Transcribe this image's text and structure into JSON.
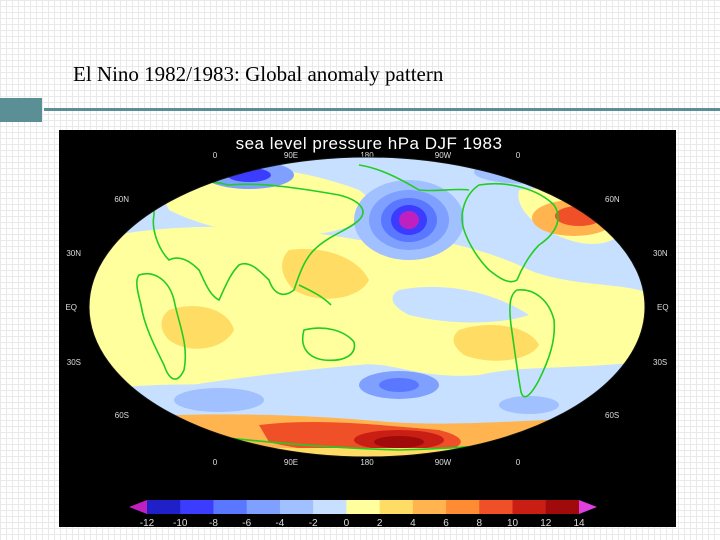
{
  "slide": {
    "title": "El Nino 1982/1983: Global anomaly pattern",
    "accent_color": "#5b8f96"
  },
  "map": {
    "title": "sea level pressure hPa DJF 1983",
    "variable": "sea level pressure anomaly",
    "units": "hPa",
    "season": "DJF 1983",
    "projection": "elliptical global",
    "coastline_color": "#22cc22",
    "lon_labels": [
      "0",
      "90E",
      "180",
      "90W",
      "0"
    ],
    "lat_labels_left": [
      "60N",
      "30N",
      "EQ",
      "30S",
      "60S"
    ],
    "lat_labels_right": [
      "60N",
      "30N",
      "EQ",
      "30S",
      "60S"
    ],
    "colorbar": {
      "ticks": [
        "-12",
        "-10",
        "-8",
        "-6",
        "-4",
        "-2",
        "0",
        "2",
        "4",
        "6",
        "8",
        "10",
        "12",
        "14"
      ],
      "colors": [
        "#2020c8",
        "#3c3cff",
        "#5a78ff",
        "#7fa0ff",
        "#a0c0ff",
        "#c8e0ff",
        "#ffff9e",
        "#ffdc64",
        "#ffb450",
        "#ff8c32",
        "#f05028",
        "#c81e14",
        "#a00a0a"
      ],
      "low_end_color": "#c020c0",
      "high_end_color": "#e040e0"
    }
  }
}
